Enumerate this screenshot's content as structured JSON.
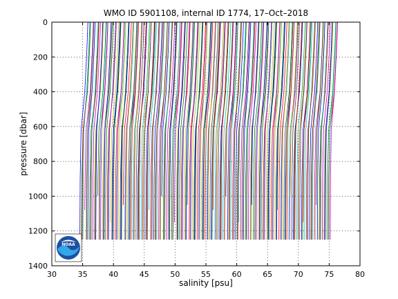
{
  "figure": {
    "title": "WMO ID 5901108, internal ID 1774, 17–Oct–2018",
    "logo_text": "NOAA"
  },
  "chart_data": {
    "type": "line",
    "title": "WMO ID 5901108, internal ID 1774, 17–Oct–2018",
    "xlabel": "salinity [psu]",
    "ylabel": "pressure [dbar]",
    "xlim": [
      30,
      80
    ],
    "ylim": [
      0,
      1400
    ],
    "y_reversed": true,
    "xticks": [
      30,
      35,
      40,
      45,
      50,
      55,
      60,
      65,
      70,
      75,
      80
    ],
    "yticks": [
      0,
      200,
      400,
      600,
      800,
      1000,
      1200,
      1400
    ],
    "grid": true,
    "grid_style": "dotted",
    "series_colors": [
      "#0000ff",
      "#008000",
      "#ff0000",
      "#00bfbf",
      "#bf00bf",
      "#bfbf00",
      "#404040"
    ],
    "profiles": {
      "count": 215,
      "first_offset_psu": 0.0,
      "offset_step_psu": 0.19,
      "surface_salinity_base": 35.7,
      "deep_salinity_base": 34.6,
      "knee_pressure_dbar": 620,
      "max_pressure_dbar": 1250
    }
  }
}
